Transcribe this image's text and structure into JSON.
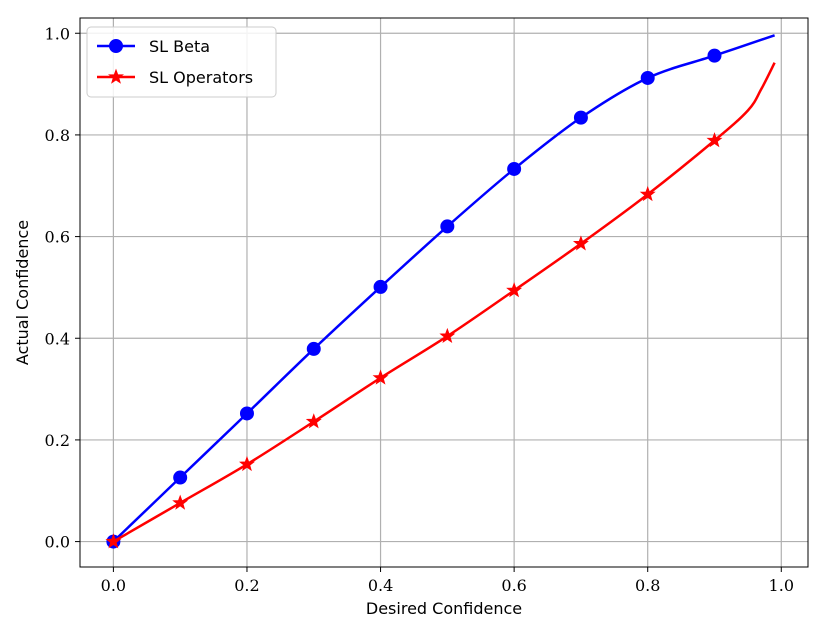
{
  "chart_data": {
    "type": "line",
    "title": "",
    "xlabel": "Desired Confidence",
    "ylabel": "Actual Confidence",
    "xlim": [
      -0.05,
      1.04
    ],
    "ylim": [
      -0.05,
      1.03
    ],
    "xticks": [
      "0.0",
      "0.2",
      "0.4",
      "0.6",
      "0.8",
      "1.0"
    ],
    "yticks": [
      "0.0",
      "0.2",
      "0.4",
      "0.6",
      "0.8",
      "1.0"
    ],
    "grid": true,
    "legend_position": "top-left",
    "series": [
      {
        "name": "SL Beta",
        "color": "#0000ff",
        "marker": "circle",
        "x": [
          0.0,
          0.1,
          0.2,
          0.3,
          0.4,
          0.5,
          0.6,
          0.7,
          0.8,
          0.9,
          0.99
        ],
        "y": [
          0.0,
          0.126,
          0.252,
          0.379,
          0.501,
          0.62,
          0.733,
          0.834,
          0.912,
          0.956,
          0.996
        ],
        "marker_x": [
          0.0,
          0.1,
          0.2,
          0.3,
          0.4,
          0.5,
          0.6,
          0.7,
          0.8,
          0.9
        ]
      },
      {
        "name": "SL Operators",
        "color": "#ff0000",
        "marker": "star",
        "x": [
          0.0,
          0.1,
          0.2,
          0.3,
          0.4,
          0.5,
          0.6,
          0.7,
          0.8,
          0.9,
          0.95,
          0.97,
          0.99
        ],
        "y": [
          0.0,
          0.076,
          0.152,
          0.236,
          0.322,
          0.404,
          0.494,
          0.586,
          0.683,
          0.789,
          0.848,
          0.89,
          0.942
        ],
        "marker_x": [
          0.0,
          0.1,
          0.2,
          0.3,
          0.4,
          0.5,
          0.6,
          0.7,
          0.8,
          0.9
        ]
      }
    ]
  }
}
